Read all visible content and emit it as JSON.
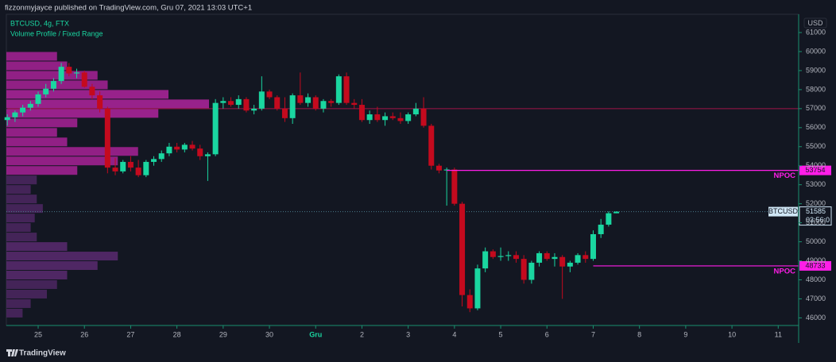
{
  "header": {
    "publisher": "fizzonmyjayce published on TradingView.com, Gru 07, 2021 13:03 UTC+1"
  },
  "chart_data": {
    "type": "candlestick",
    "title": "BTCUSD, 4g, FTX",
    "subtitle": "Volume Profile / Fixed Range",
    "y_label": "USD",
    "up_color": "#1ad6a0",
    "down_color": "#c40a1e",
    "x": [
      -16,
      -12,
      -8,
      -4,
      0,
      4,
      8,
      12,
      16,
      20,
      24,
      28,
      32,
      36,
      40,
      44,
      48,
      52,
      56,
      60,
      64,
      68,
      72,
      76,
      80,
      84,
      88,
      92,
      96,
      100,
      104,
      108,
      112,
      116,
      120,
      124,
      128,
      132,
      136,
      140,
      144,
      148,
      152,
      156,
      160,
      164,
      168,
      172,
      176,
      180,
      184,
      188,
      192,
      196,
      200,
      204,
      208,
      212,
      216,
      220,
      224,
      228,
      232,
      236,
      240,
      244,
      248,
      252,
      256,
      260,
      264,
      268,
      272,
      276,
      280,
      284,
      288,
      292,
      296,
      300
    ],
    "open": [
      56400,
      56550,
      56800,
      57050,
      57250,
      57750,
      58050,
      58450,
      59200,
      58850,
      58900,
      58150,
      57700,
      57000,
      53900,
      53700,
      54200,
      53900,
      53500,
      54200,
      54350,
      54650,
      55000,
      54850,
      55100,
      54900,
      54500,
      54600,
      57300,
      57400,
      57200,
      57500,
      56900,
      57000,
      57900,
      57600,
      57000,
      56500,
      57700,
      57300,
      57600,
      57000,
      57400,
      57300,
      58700,
      57300,
      57200,
      56400,
      56700,
      56400,
      56600,
      56500,
      56350,
      56700,
      57000,
      56100,
      54000,
      53750,
      53800,
      52000,
      47200,
      46500,
      48600,
      49500,
      49200,
      49250,
      49300,
      49100,
      48000,
      48900,
      49400,
      49100,
      49200,
      48700,
      48900,
      49300,
      49100,
      50400,
      50900,
      51500
    ],
    "high": [
      56700,
      56900,
      57200,
      57400,
      57900,
      58300,
      58600,
      59400,
      59400,
      59100,
      59000,
      58300,
      57900,
      57100,
      54400,
      54300,
      54500,
      54300,
      54300,
      54500,
      54800,
      55200,
      55200,
      55200,
      55300,
      55100,
      54700,
      57500,
      57600,
      57600,
      57700,
      57600,
      57200,
      58700,
      58000,
      57700,
      57600,
      57800,
      58900,
      57800,
      57700,
      57500,
      57500,
      58800,
      58900,
      57500,
      57500,
      56900,
      57100,
      56800,
      56800,
      56800,
      56800,
      57300,
      57600,
      56200,
      54100,
      53900,
      53900,
      52100,
      47500,
      48800,
      49700,
      49600,
      49700,
      49500,
      49500,
      49300,
      49000,
      49500,
      49500,
      49400,
      49300,
      49000,
      49400,
      49500,
      50600,
      51200,
      51600,
      51600
    ],
    "low": [
      56100,
      56300,
      56600,
      56900,
      57100,
      57600,
      57900,
      58300,
      58700,
      58600,
      58100,
      57500,
      56800,
      53600,
      53500,
      53600,
      53700,
      53400,
      53400,
      54000,
      54200,
      54500,
      54700,
      54700,
      54800,
      54300,
      53200,
      54500,
      57000,
      57100,
      57000,
      56800,
      56700,
      56900,
      57500,
      56900,
      56300,
      56200,
      57200,
      57100,
      56900,
      56800,
      57100,
      57200,
      57200,
      57000,
      56300,
      56200,
      56300,
      56100,
      56400,
      56200,
      56200,
      56600,
      56000,
      53800,
      53600,
      51900,
      51900,
      46600,
      46300,
      46400,
      48400,
      49100,
      49000,
      49000,
      48900,
      47800,
      47800,
      48700,
      49000,
      48700,
      47000,
      48400,
      48800,
      48900,
      49000,
      50200,
      50800,
      51500
    ],
    "close": [
      56550,
      56800,
      57050,
      57250,
      57750,
      58050,
      58450,
      59200,
      58850,
      58900,
      58150,
      57700,
      57000,
      53900,
      53700,
      54200,
      53900,
      53500,
      54200,
      54350,
      54650,
      55000,
      54850,
      55100,
      54900,
      54500,
      54600,
      57300,
      57400,
      57200,
      57500,
      56900,
      57000,
      57900,
      57600,
      57000,
      56500,
      57700,
      57300,
      57600,
      57000,
      57400,
      57300,
      58700,
      57300,
      57200,
      56400,
      56700,
      56400,
      56600,
      56500,
      56350,
      56700,
      57000,
      56100,
      54000,
      53750,
      53800,
      52000,
      47200,
      46500,
      48600,
      49500,
      49200,
      49250,
      49300,
      49100,
      48000,
      48900,
      49400,
      49100,
      49200,
      48700,
      48900,
      49300,
      49100,
      50400,
      50900,
      51500,
      51585
    ],
    "xlim": [
      -16.5,
      394.6
    ],
    "xticks": [
      {
        "value": 0,
        "label": "25"
      },
      {
        "value": 24,
        "label": "26"
      },
      {
        "value": 48,
        "label": "27"
      },
      {
        "value": 72,
        "label": "28"
      },
      {
        "value": 96,
        "label": "29"
      },
      {
        "value": 120,
        "label": "30"
      },
      {
        "value": 144,
        "label": "Gru"
      },
      {
        "value": 168,
        "label": "2"
      },
      {
        "value": 192,
        "label": "3"
      },
      {
        "value": 216,
        "label": "4"
      },
      {
        "value": 240,
        "label": "5"
      },
      {
        "value": 264,
        "label": "6"
      },
      {
        "value": 288,
        "label": "7"
      },
      {
        "value": 312,
        "label": "8"
      },
      {
        "value": 336,
        "label": "9"
      },
      {
        "value": 360,
        "label": "10"
      },
      {
        "value": 384,
        "label": "11"
      }
    ],
    "ylim": [
      45600,
      61960
    ],
    "yticks": [
      46000,
      47000,
      48000,
      49000,
      50000,
      51000,
      52000,
      53000,
      54000,
      55000,
      56000,
      57000,
      58000,
      59000,
      60000,
      61000
    ],
    "volume_profile": {
      "bins": [
        46000,
        46500,
        47000,
        47500,
        48000,
        48500,
        49000,
        49500,
        50000,
        50500,
        51000,
        51500,
        52000,
        52500,
        53000,
        53500,
        54000,
        54500,
        55000,
        55500,
        56000,
        56500,
        57000,
        57500,
        58000,
        58500,
        59000,
        59500,
        60000
      ],
      "values": [
        8,
        12,
        20,
        25,
        30,
        45,
        55,
        30,
        15,
        12,
        14,
        18,
        15,
        12,
        15,
        35,
        55,
        65,
        30,
        25,
        35,
        75,
        100,
        80,
        50,
        45,
        30,
        25
      ],
      "colors": [
        "#4e2762",
        "#4e2762",
        "#4e2762",
        "#4e2762",
        "#5a2a70",
        "#5a2a70",
        "#5a2a70",
        "#5a2a70",
        "#4e2762",
        "#4e2762",
        "#4e2762",
        "#4e2762",
        "#4e2762",
        "#4e2762",
        "#4e2762",
        "#a82296",
        "#a82296",
        "#a82296",
        "#a82296",
        "#a82296",
        "#a82296",
        "#b0259e",
        "#b0259e",
        "#b0259e",
        "#a82296",
        "#a82296",
        "#a82296",
        "#a82296"
      ]
    },
    "poc_line": {
      "value": 57000,
      "start": -16,
      "color": "#a0144a"
    },
    "levels": [
      {
        "label": "NPOC",
        "value": 53754,
        "start": 212,
        "color": "#ff1ee8"
      },
      {
        "label": "NPOC",
        "value": 48733,
        "start": 288,
        "color": "#ff1ee8"
      }
    ],
    "last": {
      "label": "BTCUSD",
      "value": 51585,
      "countdown": "03:56:0"
    }
  },
  "footer": {
    "brand": "TradingView"
  }
}
